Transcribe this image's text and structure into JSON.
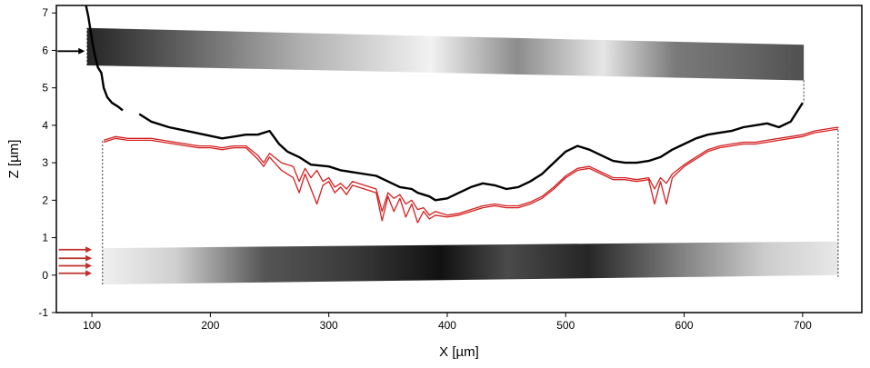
{
  "chart_data": {
    "type": "line",
    "xlabel": "X [µm]",
    "ylabel": "Z [µm]",
    "xlim": [
      70,
      750
    ],
    "ylim": [
      -1,
      7.2
    ],
    "xticks": [
      100,
      200,
      300,
      400,
      500,
      600,
      700
    ],
    "yticks": [
      -1,
      0,
      1,
      2,
      3,
      4,
      5,
      6,
      7
    ],
    "grid": false,
    "legend": "none",
    "colors": {
      "black_profile": "#000000",
      "red_profile": "#d42020",
      "red_arrows": "#c0302c",
      "black_arrow": "#000000"
    },
    "series": [
      {
        "color": "#000000",
        "x": [
          95,
          97,
          99,
          101,
          103,
          105,
          108,
          110,
          113,
          117,
          122,
          126
        ],
        "y": [
          7.2,
          6.9,
          6.5,
          6.1,
          5.8,
          5.55,
          5.4,
          5.0,
          4.75,
          4.6,
          4.5,
          4.4
        ]
      },
      {
        "color": "#000000",
        "x": [
          140,
          150,
          165,
          180,
          195,
          210,
          220,
          230,
          240,
          250,
          258,
          265,
          275,
          285,
          300,
          310,
          320,
          330,
          340,
          350,
          360,
          370,
          375,
          380,
          385,
          390,
          400,
          410,
          420,
          430,
          440,
          450,
          460,
          470,
          480,
          490,
          500,
          510,
          520,
          530,
          540,
          550,
          560,
          570,
          580,
          590,
          600,
          610,
          620,
          630,
          640,
          650,
          660,
          670,
          680,
          690,
          700
        ],
        "y": [
          4.3,
          4.1,
          3.95,
          3.85,
          3.75,
          3.65,
          3.7,
          3.75,
          3.75,
          3.85,
          3.5,
          3.3,
          3.15,
          2.95,
          2.9,
          2.8,
          2.75,
          2.7,
          2.65,
          2.5,
          2.35,
          2.3,
          2.2,
          2.15,
          2.1,
          2.0,
          2.05,
          2.2,
          2.35,
          2.45,
          2.4,
          2.3,
          2.35,
          2.5,
          2.7,
          3.0,
          3.3,
          3.45,
          3.35,
          3.2,
          3.05,
          3.0,
          3.0,
          3.05,
          3.15,
          3.35,
          3.5,
          3.65,
          3.75,
          3.8,
          3.85,
          3.95,
          4.0,
          4.05,
          3.95,
          4.1,
          4.6
        ]
      },
      {
        "color": "#d42020",
        "x": [
          110,
          120,
          130,
          140,
          150,
          160,
          170,
          180,
          190,
          200,
          210,
          220,
          230,
          240,
          245,
          250,
          260,
          270,
          275,
          280,
          285,
          290,
          295,
          300,
          305,
          310,
          315,
          320,
          330,
          340,
          345,
          350,
          355,
          360,
          365,
          370,
          375,
          380,
          385,
          390,
          400,
          410,
          420,
          430,
          440,
          450,
          460,
          470,
          480,
          490,
          500,
          510,
          520,
          530,
          540,
          550,
          560,
          570,
          575,
          580,
          585,
          590,
          600,
          610,
          620,
          630,
          640,
          650,
          660,
          670,
          680,
          690,
          700,
          710,
          720,
          730
        ],
        "y": [
          3.6,
          3.7,
          3.65,
          3.65,
          3.65,
          3.6,
          3.55,
          3.5,
          3.45,
          3.45,
          3.4,
          3.45,
          3.45,
          3.2,
          3.0,
          3.25,
          3.0,
          2.9,
          2.5,
          2.85,
          2.6,
          2.8,
          2.5,
          2.6,
          2.35,
          2.45,
          2.3,
          2.5,
          2.4,
          2.3,
          1.7,
          2.2,
          2.05,
          2.15,
          1.9,
          2.0,
          1.75,
          1.8,
          1.6,
          1.7,
          1.6,
          1.65,
          1.75,
          1.85,
          1.9,
          1.85,
          1.85,
          1.95,
          2.1,
          2.35,
          2.65,
          2.85,
          2.9,
          2.75,
          2.6,
          2.6,
          2.55,
          2.6,
          2.3,
          2.6,
          2.45,
          2.7,
          2.95,
          3.15,
          3.35,
          3.45,
          3.5,
          3.55,
          3.55,
          3.6,
          3.65,
          3.7,
          3.75,
          3.85,
          3.9,
          3.95
        ]
      },
      {
        "color": "#d42020",
        "x": [
          110,
          120,
          130,
          140,
          150,
          160,
          170,
          180,
          190,
          200,
          210,
          220,
          230,
          240,
          245,
          250,
          260,
          270,
          275,
          280,
          285,
          290,
          295,
          300,
          305,
          310,
          315,
          320,
          330,
          340,
          345,
          350,
          355,
          360,
          365,
          370,
          375,
          380,
          385,
          390,
          400,
          410,
          420,
          430,
          440,
          450,
          460,
          470,
          480,
          490,
          500,
          510,
          520,
          530,
          540,
          550,
          560,
          570,
          575,
          580,
          585,
          590,
          600,
          610,
          620,
          630,
          640,
          650,
          660,
          670,
          680,
          690,
          700,
          710,
          720,
          730
        ],
        "y": [
          3.55,
          3.65,
          3.6,
          3.6,
          3.6,
          3.55,
          3.5,
          3.45,
          3.4,
          3.4,
          3.35,
          3.4,
          3.4,
          3.1,
          2.9,
          3.15,
          2.8,
          2.6,
          2.2,
          2.7,
          2.3,
          1.9,
          2.4,
          2.5,
          2.2,
          2.35,
          2.15,
          2.4,
          2.3,
          2.2,
          1.45,
          2.1,
          1.7,
          2.05,
          1.55,
          1.9,
          1.4,
          1.7,
          1.5,
          1.6,
          1.55,
          1.6,
          1.7,
          1.8,
          1.85,
          1.8,
          1.8,
          1.9,
          2.05,
          2.3,
          2.6,
          2.8,
          2.85,
          2.7,
          2.55,
          2.55,
          2.5,
          2.55,
          1.9,
          2.5,
          1.9,
          2.6,
          2.9,
          3.1,
          3.3,
          3.4,
          3.45,
          3.5,
          3.5,
          3.55,
          3.6,
          3.65,
          3.7,
          3.8,
          3.85,
          3.9
        ]
      }
    ]
  }
}
